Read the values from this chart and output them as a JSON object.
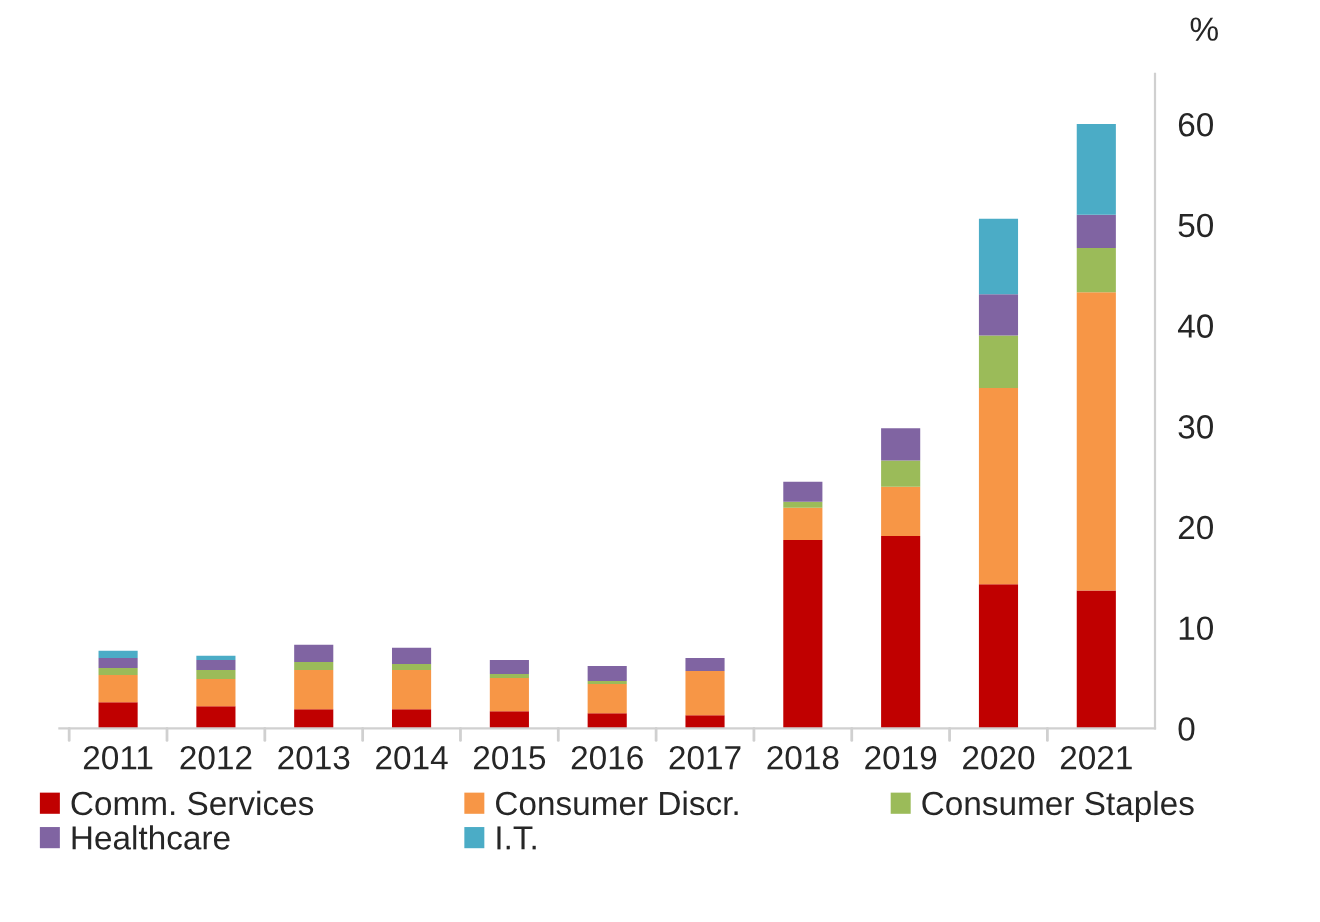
{
  "chart_data": {
    "type": "bar",
    "stacked": true,
    "ylabel": "%",
    "categories": [
      "2011",
      "2012",
      "2013",
      "2014",
      "2015",
      "2016",
      "2017",
      "2018",
      "2019",
      "2020",
      "2021"
    ],
    "series": [
      {
        "name": "Comm. Services",
        "color": "#c00000",
        "values": [
          2.6,
          2.2,
          1.9,
          1.9,
          1.7,
          1.5,
          1.3,
          18.7,
          19.1,
          14.3,
          13.7
        ]
      },
      {
        "name": "Consumer Discr.",
        "color": "#f79646",
        "values": [
          2.7,
          2.7,
          3.9,
          3.9,
          3.3,
          2.9,
          4.4,
          3.2,
          4.9,
          19.5,
          29.6
        ]
      },
      {
        "name": "Consumer Staples",
        "color": "#9bbb59",
        "values": [
          0.7,
          0.9,
          0.8,
          0.6,
          0.4,
          0.3,
          null,
          0.6,
          2.6,
          5.2,
          4.4
        ]
      },
      {
        "name": "Healthcare",
        "color": "#8064a2",
        "values": [
          1.0,
          1.0,
          1.7,
          1.6,
          1.4,
          1.5,
          1.3,
          2.0,
          3.2,
          4.1,
          3.3
        ]
      },
      {
        "name": "I.T.",
        "color": "#4bacc6",
        "values": [
          0.7,
          0.4,
          null,
          null,
          null,
          null,
          null,
          null,
          null,
          7.5,
          9.0
        ]
      }
    ],
    "ylim": [
      0,
      65
    ],
    "yticks": [
      0,
      10,
      20,
      30,
      40,
      50,
      60
    ],
    "grid": false,
    "legend": "bottom"
  }
}
